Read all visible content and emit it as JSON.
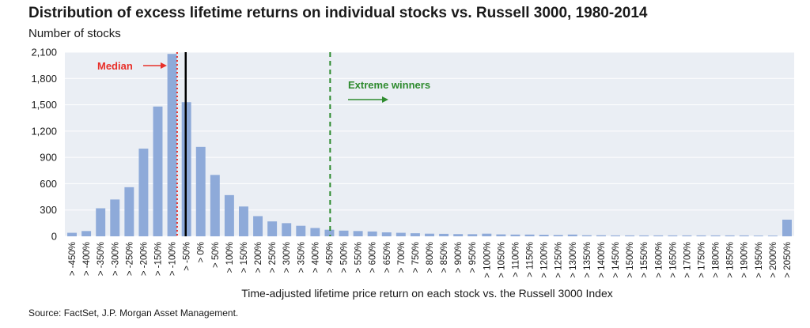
{
  "chart_data": {
    "type": "bar",
    "title": "Distribution of excess lifetime returns on individual stocks vs. Russell 3000, 1980-2014",
    "ylabel": "Number of stocks",
    "xlabel": "Time-adjusted lifetime price return on each stock vs. the Russell 3000 Index",
    "source": "Source: FactSet, J.P. Morgan Asset Management.",
    "ylim": [
      0,
      2100
    ],
    "yticks": [
      "0",
      "300",
      "600",
      "900",
      "1,200",
      "1,500",
      "1,800",
      "2,100"
    ],
    "categories": [
      "> -450%",
      "> -400%",
      "> -350%",
      "> -300%",
      "> -250%",
      "> -200%",
      "> -150%",
      "> -100%",
      "> -50%",
      "> 0%",
      "> 50%",
      "> 100%",
      "> 150%",
      "> 200%",
      "> 250%",
      "> 300%",
      "> 350%",
      "> 400%",
      "> 450%",
      "> 500%",
      "> 550%",
      "> 600%",
      "> 650%",
      "> 700%",
      "> 750%",
      "> 800%",
      "> 850%",
      "> 900%",
      "> 950%",
      "> 1000%",
      "> 1050%",
      "> 1100%",
      "> 1150%",
      "> 1200%",
      "> 1250%",
      "> 1300%",
      "> 1350%",
      "> 1400%",
      "> 1450%",
      "> 1500%",
      "> 1550%",
      "> 1600%",
      "> 1650%",
      "> 1700%",
      "> 1750%",
      "> 1800%",
      "> 1850%",
      "> 1900%",
      "> 1950%",
      "> 2000%",
      "> 2050%"
    ],
    "values": [
      40,
      60,
      320,
      420,
      560,
      1000,
      1480,
      2080,
      1530,
      1020,
      700,
      470,
      340,
      230,
      170,
      150,
      120,
      95,
      75,
      65,
      60,
      55,
      45,
      40,
      35,
      30,
      28,
      25,
      24,
      30,
      22,
      20,
      20,
      18,
      15,
      20,
      12,
      12,
      10,
      10,
      10,
      10,
      10,
      10,
      10,
      10,
      10,
      10,
      8,
      8,
      190
    ],
    "annotations": {
      "median": "Median",
      "extreme_winners": "Extreme winners"
    },
    "colors": {
      "bar": "#8eaad9",
      "plot_bg": "#eaeef4",
      "median": "#e8302a",
      "mean_line": "#000000",
      "extreme": "#2e8b2e"
    }
  }
}
